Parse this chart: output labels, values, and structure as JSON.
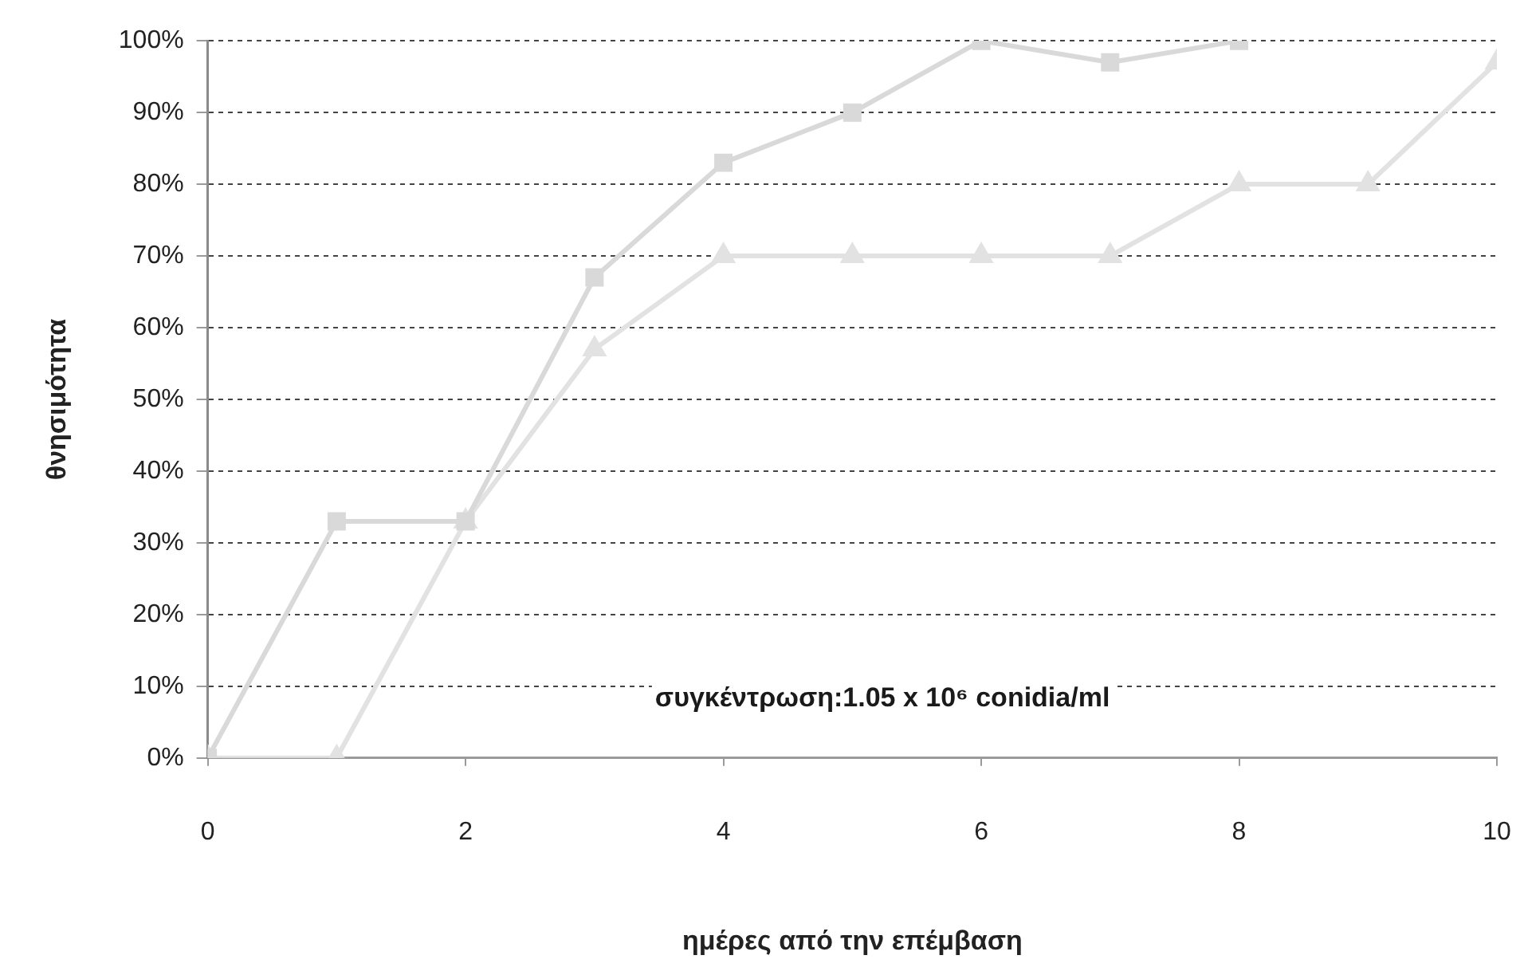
{
  "chart_data": {
    "type": "line",
    "xlabel": "ημέρες από την επέμβαση",
    "ylabel": "θνησιμότητα",
    "x": [
      0,
      1,
      2,
      3,
      4,
      5,
      6,
      7,
      8,
      9,
      10
    ],
    "series": [
      {
        "color": "#d9d9d9",
        "marker": "square",
        "values": [
          0,
          33,
          33,
          67,
          83,
          90,
          100,
          97,
          100,
          null,
          null
        ]
      },
      {
        "color": "#e2e2e2",
        "marker": "triangle",
        "values": [
          0,
          0,
          33,
          57,
          70,
          70,
          70,
          70,
          80,
          80,
          97
        ]
      }
    ],
    "xlim": [
      0,
      10
    ],
    "xticks": [
      0,
      2,
      4,
      6,
      8,
      10
    ],
    "ylim": [
      0,
      100
    ],
    "yticks": [
      {
        "value": 0,
        "label": "0%"
      },
      {
        "value": 10,
        "label": "10%"
      },
      {
        "value": 20,
        "label": "20%"
      },
      {
        "value": 30,
        "label": "30%"
      },
      {
        "value": 40,
        "label": "40%"
      },
      {
        "value": 50,
        "label": "50%"
      },
      {
        "value": 60,
        "label": "60%"
      },
      {
        "value": 70,
        "label": "70%"
      },
      {
        "value": 80,
        "label": "80%"
      },
      {
        "value": 90,
        "label": "90%"
      },
      {
        "value": 100,
        "label": "100%"
      }
    ],
    "grid": "y",
    "annotations": [
      "συγκέντρωση:1.05 x 10⁶ conidia/ml"
    ]
  }
}
